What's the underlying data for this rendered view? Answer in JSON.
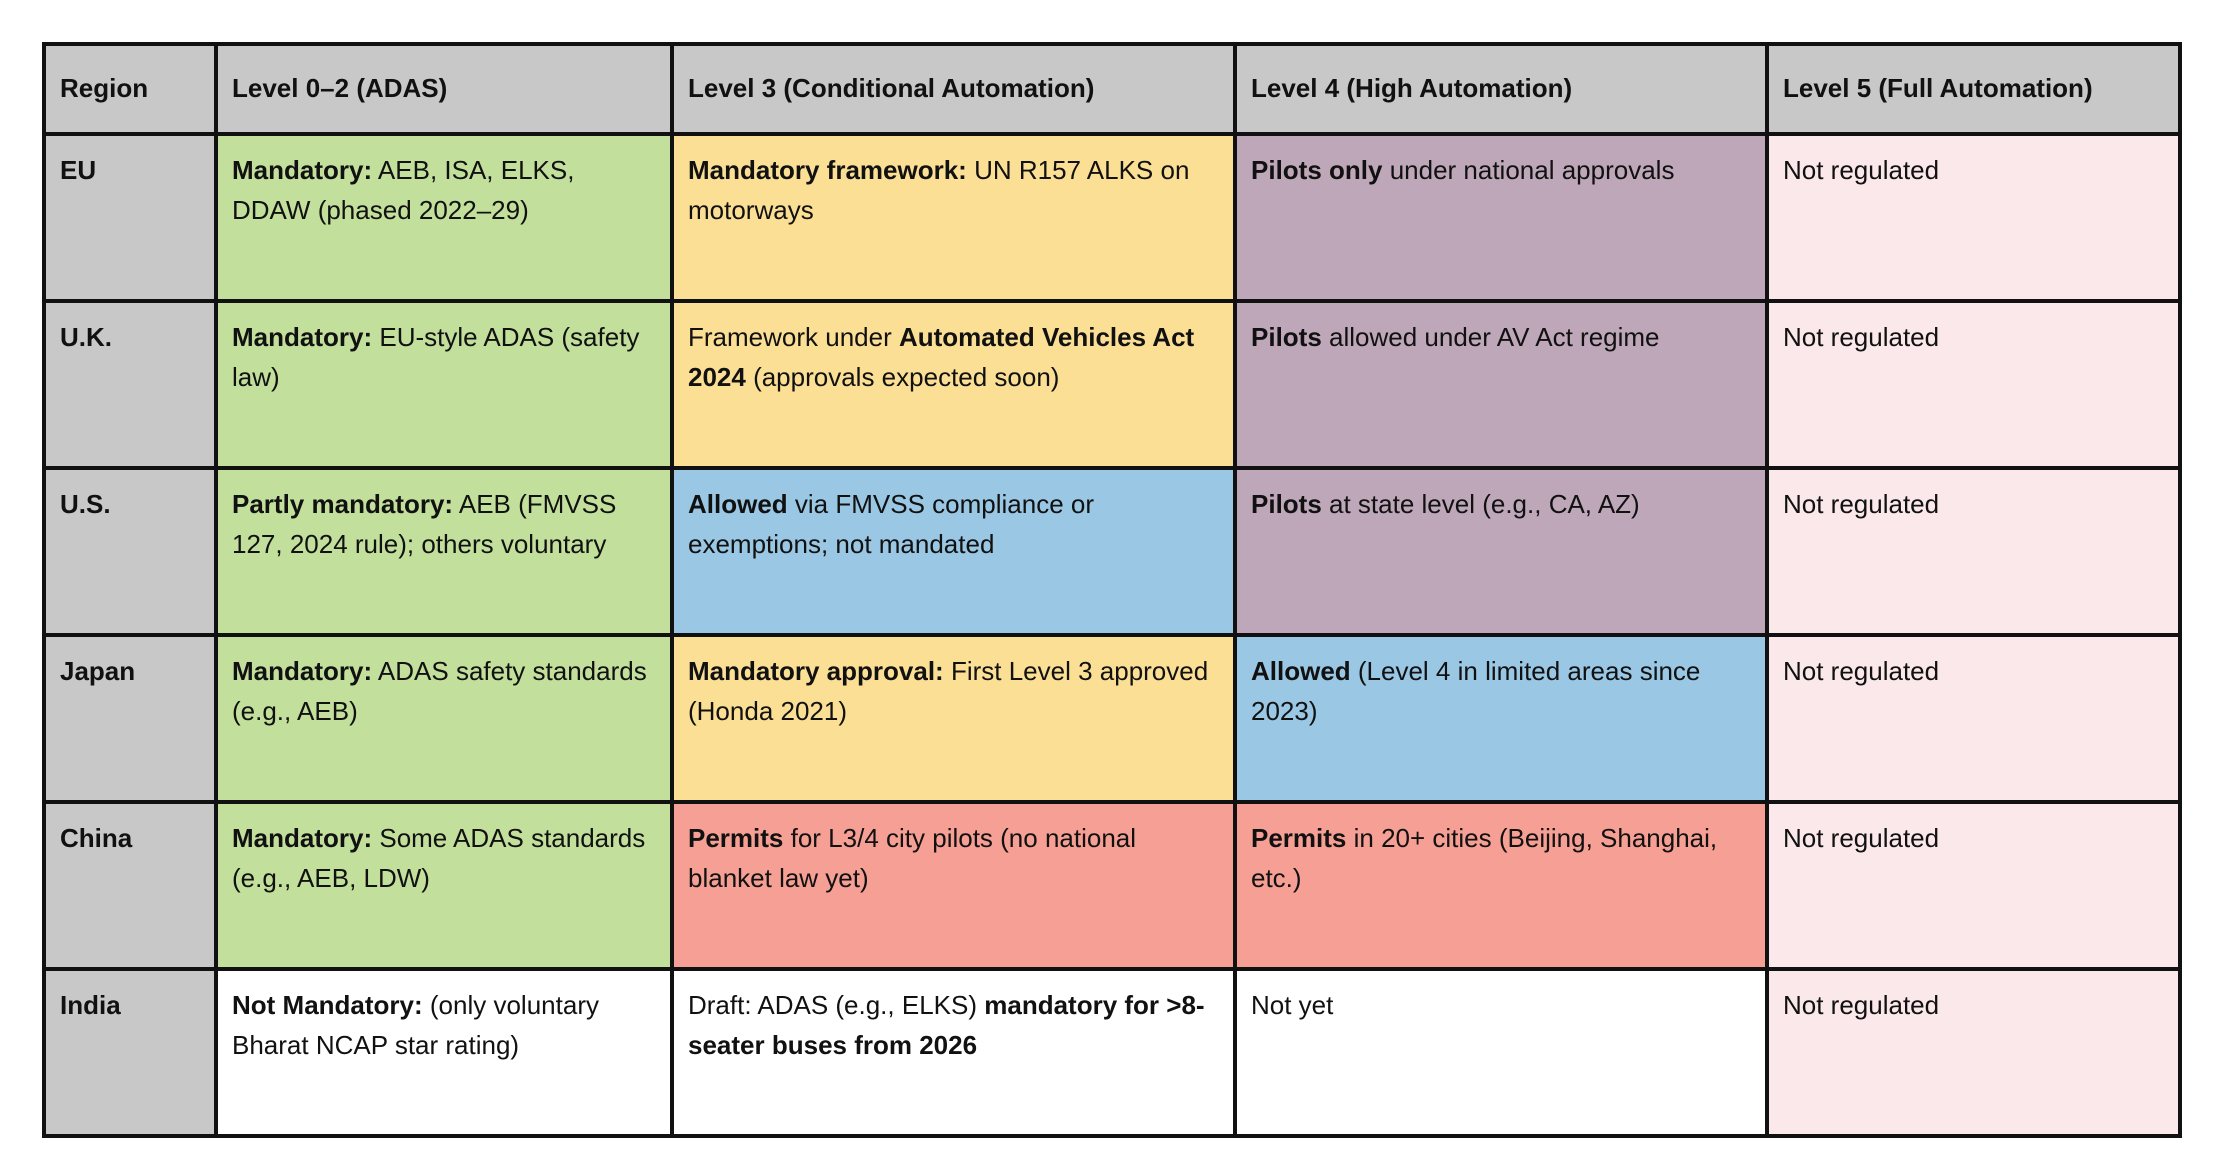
{
  "colors": {
    "header": "#c8c8c8",
    "mandatory": "#c2df9c",
    "framework": "#fbdf95",
    "pilots": "#bfa7ba",
    "not_regulated": "#fbe8ea",
    "allowed": "#99c7e4",
    "permits": "#f69f94",
    "none": "#ffffff",
    "border": "#111111"
  },
  "table": {
    "headers": [
      "Region",
      "Level 0–2 (ADAS)",
      "Level 3 (Conditional Automation)",
      "Level 4 (High Automation)",
      "Level 5 (Full Automation)"
    ],
    "rows": [
      {
        "region": "EU",
        "cells": [
          {
            "bold": "Mandatory:",
            "text": " AEB, ISA, ELKS, DDAW (phased 2022–29)",
            "after_bold": "",
            "tail": ""
          },
          {
            "bold": "Mandatory framework:",
            "text": " UN R157 ALKS on motorways",
            "after_bold": "",
            "tail": ""
          },
          {
            "bold": "Pilots only",
            "text": " under national approvals",
            "after_bold": "",
            "tail": ""
          },
          {
            "bold": "",
            "text": "Not regulated",
            "after_bold": "",
            "tail": ""
          }
        ]
      },
      {
        "region": "U.K.",
        "cells": [
          {
            "bold": "Mandatory:",
            "text": " EU-style ADAS (safety law)",
            "after_bold": "",
            "tail": ""
          },
          {
            "bold": "",
            "text": "Framework under ",
            "after_bold": "Automated Vehicles Act 2024",
            "tail": " (approvals expected soon)"
          },
          {
            "bold": "Pilots",
            "text": " allowed under AV Act regime",
            "after_bold": "",
            "tail": ""
          },
          {
            "bold": "",
            "text": "Not regulated",
            "after_bold": "",
            "tail": ""
          }
        ]
      },
      {
        "region": "U.S.",
        "cells": [
          {
            "bold": "Partly mandatory:",
            "text": " AEB (FMVSS 127, 2024 rule); others voluntary",
            "after_bold": "",
            "tail": ""
          },
          {
            "bold": "Allowed",
            "text": " via FMVSS compliance or exemptions; not mandated",
            "after_bold": "",
            "tail": ""
          },
          {
            "bold": "Pilots",
            "text": " at state level (e.g., CA, AZ)",
            "after_bold": "",
            "tail": ""
          },
          {
            "bold": "",
            "text": "Not regulated",
            "after_bold": "",
            "tail": ""
          }
        ]
      },
      {
        "region": "Japan",
        "cells": [
          {
            "bold": "Mandatory:",
            "text": " ADAS safety standards (e.g., AEB)",
            "after_bold": "",
            "tail": ""
          },
          {
            "bold": "Mandatory approval:",
            "text": " First Level 3 approved (Honda 2021)",
            "after_bold": "",
            "tail": ""
          },
          {
            "bold": "Allowed",
            "text": " (Level 4 in limited areas since 2023)",
            "after_bold": "",
            "tail": ""
          },
          {
            "bold": "",
            "text": "Not regulated",
            "after_bold": "",
            "tail": ""
          }
        ]
      },
      {
        "region": "China",
        "cells": [
          {
            "bold": "Mandatory:",
            "text": " Some ADAS standards (e.g., AEB, LDW)",
            "after_bold": "",
            "tail": ""
          },
          {
            "bold": "Permits",
            "text": " for L3/4 city pilots (no national blanket law yet)",
            "after_bold": "",
            "tail": ""
          },
          {
            "bold": "Permits",
            "text": " in 20+ cities (Beijing, Shanghai, etc.)",
            "after_bold": "",
            "tail": ""
          },
          {
            "bold": "",
            "text": "Not regulated",
            "after_bold": "",
            "tail": ""
          }
        ]
      },
      {
        "region": "India",
        "cells": [
          {
            "bold": "Not Mandatory:",
            "text": " (only voluntary Bharat NCAP star rating)",
            "after_bold": "",
            "tail": ""
          },
          {
            "bold": "",
            "text": "Draft: ADAS (e.g., ELKS) ",
            "after_bold": "mandatory for >8-seater buses from 2026",
            "tail": ""
          },
          {
            "bold": "",
            "text": "Not yet",
            "after_bold": "",
            "tail": ""
          },
          {
            "bold": "",
            "text": "Not regulated",
            "after_bold": "",
            "tail": ""
          }
        ]
      }
    ]
  }
}
